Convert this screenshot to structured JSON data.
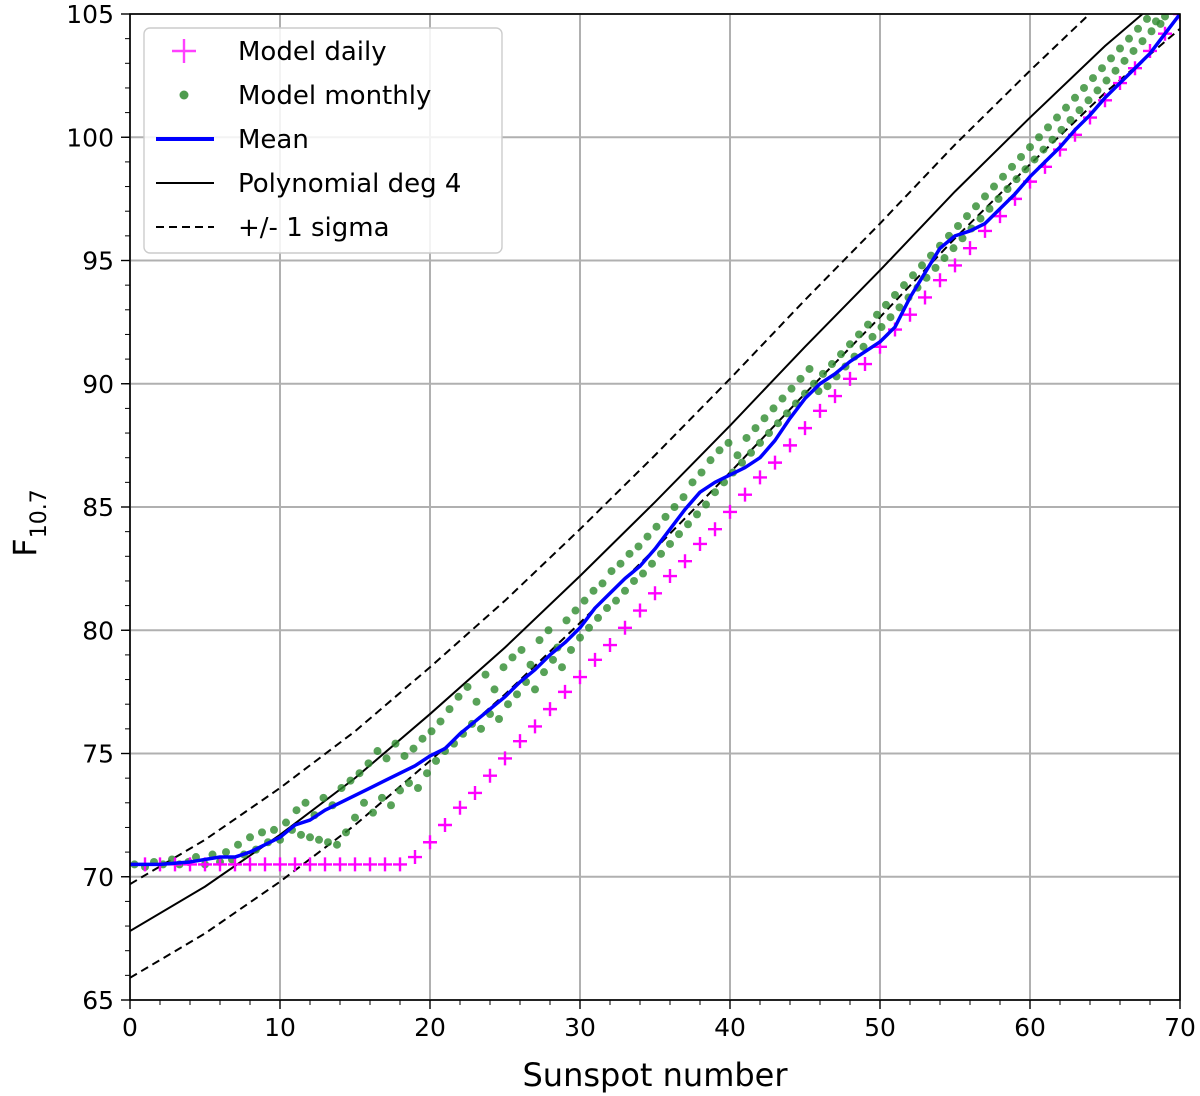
{
  "chart_data": {
    "type": "line",
    "title": "",
    "xlabel": "Sunspot number",
    "ylabel_main": "F",
    "ylabel_sub": "10.7",
    "xlim": [
      0,
      70
    ],
    "ylim": [
      65,
      105
    ],
    "xticks": [
      0,
      10,
      20,
      30,
      40,
      50,
      60,
      70
    ],
    "yticks": [
      65,
      70,
      75,
      80,
      85,
      90,
      95,
      100,
      105
    ],
    "grid": true,
    "legend_position": "upper-left",
    "colors": {
      "daily": "#ff00ff",
      "monthly": "#2e8b2e",
      "mean": "#0000ff",
      "poly": "#000000",
      "sigma": "#000000"
    },
    "legend": {
      "daily": "Model daily",
      "monthly": "Model monthly",
      "mean": "Mean",
      "poly": "Polynomial deg 4",
      "sigma": "+/- 1 sigma"
    },
    "series": {
      "daily": {
        "name": "Model daily",
        "x": [
          1,
          2,
          3,
          4,
          5,
          6,
          7,
          8,
          9,
          10,
          11,
          12,
          13,
          14,
          15,
          16,
          17,
          18,
          19,
          20,
          21,
          22,
          23,
          24,
          25,
          26,
          27,
          28,
          29,
          30,
          31,
          32,
          33,
          34,
          35,
          36,
          37,
          38,
          39,
          40,
          41,
          42,
          43,
          44,
          45,
          46,
          47,
          48,
          49,
          50,
          51,
          52,
          53,
          54,
          55,
          56,
          57,
          58,
          59,
          60,
          61,
          62,
          63,
          64,
          65,
          66,
          67,
          68,
          69,
          70
        ],
        "y": [
          70.5,
          70.5,
          70.5,
          70.5,
          70.5,
          70.5,
          70.5,
          70.5,
          70.5,
          70.5,
          70.5,
          70.5,
          70.5,
          70.5,
          70.5,
          70.5,
          70.5,
          70.5,
          70.8,
          71.4,
          72.1,
          72.8,
          73.4,
          74.1,
          74.8,
          75.5,
          76.1,
          76.8,
          77.5,
          78.1,
          78.8,
          79.4,
          80.1,
          80.8,
          81.5,
          82.2,
          82.8,
          83.5,
          84.1,
          84.8,
          85.5,
          86.2,
          86.8,
          87.5,
          88.2,
          88.9,
          89.5,
          90.2,
          90.8,
          91.5,
          92.2,
          92.8,
          93.5,
          94.2,
          94.8,
          95.5,
          96.2,
          96.8,
          97.5,
          98.2,
          98.8,
          99.5,
          100.1,
          100.8,
          101.5,
          102.2,
          102.8,
          103.5,
          104.2,
          105.0
        ]
      },
      "monthly": {
        "name": "Model monthly",
        "points": [
          [
            0.3,
            70.5
          ],
          [
            1.0,
            70.4
          ],
          [
            1.6,
            70.6
          ],
          [
            2.2,
            70.5
          ],
          [
            2.8,
            70.7
          ],
          [
            3.3,
            70.5
          ],
          [
            3.9,
            70.6
          ],
          [
            4.4,
            70.8
          ],
          [
            5.0,
            70.5
          ],
          [
            5.5,
            70.9
          ],
          [
            6.0,
            70.6
          ],
          [
            6.4,
            71.0
          ],
          [
            6.8,
            70.7
          ],
          [
            7.2,
            71.3
          ],
          [
            7.6,
            70.9
          ],
          [
            8.0,
            71.6
          ],
          [
            8.4,
            71.1
          ],
          [
            8.8,
            71.8
          ],
          [
            9.2,
            71.4
          ],
          [
            9.6,
            71.9
          ],
          [
            10.0,
            71.5
          ],
          [
            10.4,
            72.2
          ],
          [
            10.8,
            71.9
          ],
          [
            11.1,
            72.7
          ],
          [
            11.4,
            71.7
          ],
          [
            11.7,
            73.0
          ],
          [
            12.0,
            71.6
          ],
          [
            12.3,
            72.5
          ],
          [
            12.6,
            71.5
          ],
          [
            12.9,
            73.2
          ],
          [
            13.2,
            71.4
          ],
          [
            13.5,
            72.9
          ],
          [
            13.8,
            71.3
          ],
          [
            14.1,
            73.6
          ],
          [
            14.4,
            71.8
          ],
          [
            14.7,
            73.9
          ],
          [
            15.0,
            72.4
          ],
          [
            15.3,
            74.2
          ],
          [
            15.6,
            73.0
          ],
          [
            15.9,
            74.6
          ],
          [
            16.2,
            72.6
          ],
          [
            16.5,
            75.1
          ],
          [
            16.8,
            73.2
          ],
          [
            17.1,
            74.8
          ],
          [
            17.4,
            72.9
          ],
          [
            17.7,
            75.4
          ],
          [
            18.0,
            73.5
          ],
          [
            18.3,
            74.9
          ],
          [
            18.6,
            73.8
          ],
          [
            18.9,
            75.2
          ],
          [
            19.2,
            73.6
          ],
          [
            19.5,
            75.6
          ],
          [
            19.8,
            74.2
          ],
          [
            20.1,
            75.9
          ],
          [
            20.4,
            74.7
          ],
          [
            20.7,
            76.3
          ],
          [
            21.0,
            75.1
          ],
          [
            21.3,
            76.8
          ],
          [
            21.6,
            75.4
          ],
          [
            21.9,
            77.3
          ],
          [
            22.2,
            75.8
          ],
          [
            22.5,
            77.7
          ],
          [
            22.8,
            76.2
          ],
          [
            23.1,
            77.1
          ],
          [
            23.4,
            76.0
          ],
          [
            23.7,
            78.2
          ],
          [
            24.0,
            76.6
          ],
          [
            24.3,
            77.6
          ],
          [
            24.6,
            76.4
          ],
          [
            24.9,
            78.5
          ],
          [
            25.2,
            77.0
          ],
          [
            25.5,
            78.9
          ],
          [
            25.8,
            77.4
          ],
          [
            26.1,
            79.2
          ],
          [
            26.4,
            77.9
          ],
          [
            26.7,
            78.6
          ],
          [
            27.0,
            77.6
          ],
          [
            27.3,
            79.6
          ],
          [
            27.6,
            78.3
          ],
          [
            27.9,
            80.0
          ],
          [
            28.2,
            78.8
          ],
          [
            28.5,
            79.3
          ],
          [
            28.8,
            78.5
          ],
          [
            29.1,
            80.4
          ],
          [
            29.4,
            79.2
          ],
          [
            29.7,
            80.8
          ],
          [
            30.0,
            79.7
          ],
          [
            30.3,
            81.2
          ],
          [
            30.6,
            80.1
          ],
          [
            30.9,
            81.6
          ],
          [
            31.2,
            80.5
          ],
          [
            31.5,
            81.9
          ],
          [
            31.8,
            80.9
          ],
          [
            32.1,
            82.4
          ],
          [
            32.4,
            81.2
          ],
          [
            32.7,
            82.7
          ],
          [
            33.0,
            81.6
          ],
          [
            33.3,
            83.1
          ],
          [
            33.6,
            82.0
          ],
          [
            33.9,
            83.4
          ],
          [
            34.2,
            82.3
          ],
          [
            34.5,
            83.8
          ],
          [
            34.8,
            82.7
          ],
          [
            35.1,
            84.2
          ],
          [
            35.4,
            83.1
          ],
          [
            35.7,
            84.6
          ],
          [
            36.0,
            83.5
          ],
          [
            36.3,
            85.0
          ],
          [
            36.6,
            83.9
          ],
          [
            36.9,
            85.4
          ],
          [
            37.2,
            84.3
          ],
          [
            37.5,
            86.0
          ],
          [
            37.8,
            84.7
          ],
          [
            38.1,
            86.4
          ],
          [
            38.4,
            85.1
          ],
          [
            38.7,
            86.9
          ],
          [
            39.0,
            85.6
          ],
          [
            39.3,
            87.3
          ],
          [
            39.6,
            86.0
          ],
          [
            39.9,
            87.6
          ],
          [
            40.2,
            86.4
          ],
          [
            40.5,
            87.1
          ],
          [
            40.8,
            86.8
          ],
          [
            41.1,
            87.8
          ],
          [
            41.4,
            87.2
          ],
          [
            41.7,
            88.2
          ],
          [
            42.0,
            87.6
          ],
          [
            42.3,
            88.6
          ],
          [
            42.6,
            88.0
          ],
          [
            42.9,
            89.0
          ],
          [
            43.2,
            88.4
          ],
          [
            43.5,
            89.4
          ],
          [
            43.8,
            88.8
          ],
          [
            44.1,
            89.8
          ],
          [
            44.4,
            89.2
          ],
          [
            44.7,
            90.2
          ],
          [
            45.0,
            89.6
          ],
          [
            45.3,
            90.6
          ],
          [
            45.6,
            90.0
          ],
          [
            45.9,
            89.7
          ],
          [
            46.2,
            90.4
          ],
          [
            46.5,
            89.9
          ],
          [
            46.8,
            90.8
          ],
          [
            47.1,
            90.3
          ],
          [
            47.4,
            91.2
          ],
          [
            47.7,
            90.7
          ],
          [
            48.0,
            91.6
          ],
          [
            48.3,
            91.1
          ],
          [
            48.6,
            92.0
          ],
          [
            48.9,
            91.5
          ],
          [
            49.2,
            92.4
          ],
          [
            49.5,
            91.9
          ],
          [
            49.8,
            92.8
          ],
          [
            50.1,
            92.3
          ],
          [
            50.4,
            93.2
          ],
          [
            50.7,
            92.7
          ],
          [
            51.0,
            93.6
          ],
          [
            51.3,
            93.1
          ],
          [
            51.6,
            94.0
          ],
          [
            51.9,
            93.5
          ],
          [
            52.2,
            94.4
          ],
          [
            52.5,
            93.9
          ],
          [
            52.8,
            94.8
          ],
          [
            53.1,
            94.3
          ],
          [
            53.4,
            95.2
          ],
          [
            53.7,
            94.7
          ],
          [
            54.0,
            95.6
          ],
          [
            54.3,
            95.1
          ],
          [
            54.6,
            96.0
          ],
          [
            54.9,
            95.5
          ],
          [
            55.2,
            96.4
          ],
          [
            55.5,
            95.9
          ],
          [
            55.8,
            96.8
          ],
          [
            56.1,
            96.3
          ],
          [
            56.4,
            97.2
          ],
          [
            56.7,
            96.7
          ],
          [
            57.0,
            97.6
          ],
          [
            57.3,
            97.1
          ],
          [
            57.6,
            98.0
          ],
          [
            57.9,
            97.5
          ],
          [
            58.2,
            98.4
          ],
          [
            58.5,
            97.9
          ],
          [
            58.8,
            98.8
          ],
          [
            59.1,
            98.3
          ],
          [
            59.4,
            99.2
          ],
          [
            59.7,
            98.7
          ],
          [
            60.0,
            99.6
          ],
          [
            60.3,
            99.1
          ],
          [
            60.6,
            100.0
          ],
          [
            60.9,
            99.5
          ],
          [
            61.2,
            100.4
          ],
          [
            61.5,
            99.9
          ],
          [
            61.8,
            100.8
          ],
          [
            62.1,
            100.3
          ],
          [
            62.4,
            101.2
          ],
          [
            62.7,
            100.7
          ],
          [
            63.0,
            101.6
          ],
          [
            63.3,
            101.1
          ],
          [
            63.6,
            102.0
          ],
          [
            63.9,
            101.5
          ],
          [
            64.2,
            102.4
          ],
          [
            64.5,
            101.9
          ],
          [
            64.8,
            102.8
          ],
          [
            65.1,
            102.3
          ],
          [
            65.4,
            103.2
          ],
          [
            65.7,
            102.7
          ],
          [
            66.0,
            103.6
          ],
          [
            66.3,
            103.1
          ],
          [
            66.6,
            104.0
          ],
          [
            66.9,
            103.5
          ],
          [
            67.2,
            104.4
          ],
          [
            67.5,
            103.9
          ],
          [
            67.8,
            104.8
          ],
          [
            68.1,
            104.3
          ],
          [
            68.4,
            104.7
          ],
          [
            68.7,
            104.6
          ],
          [
            69.0,
            104.9
          ]
        ]
      },
      "mean": {
        "name": "Mean",
        "x": [
          0,
          2,
          4,
          6,
          7,
          8,
          9,
          10,
          11,
          12,
          13,
          14,
          15,
          16,
          17,
          18,
          19,
          20,
          21,
          22,
          23,
          24,
          25,
          26,
          27,
          28,
          29,
          30,
          31,
          32,
          33,
          34,
          35,
          36,
          37,
          38,
          39,
          40,
          41,
          42,
          43,
          44,
          45,
          46,
          47,
          48,
          49,
          50,
          51,
          52,
          53,
          54,
          55,
          56,
          57,
          58,
          59,
          60,
          61,
          62,
          63,
          64,
          65,
          66,
          67,
          68,
          69,
          70
        ],
        "y": [
          70.5,
          70.5,
          70.6,
          70.8,
          70.8,
          71.0,
          71.3,
          71.6,
          72.1,
          72.3,
          72.7,
          73.0,
          73.3,
          73.6,
          73.9,
          74.2,
          74.5,
          74.9,
          75.2,
          75.8,
          76.3,
          76.8,
          77.3,
          77.9,
          78.4,
          79.0,
          79.5,
          80.1,
          80.9,
          81.5,
          82.1,
          82.6,
          83.3,
          84.1,
          84.9,
          85.6,
          86.0,
          86.3,
          86.6,
          87.0,
          87.7,
          88.6,
          89.4,
          90.0,
          90.4,
          90.9,
          91.3,
          91.7,
          92.3,
          93.5,
          94.5,
          95.5,
          96.0,
          96.2,
          96.5,
          97.1,
          97.7,
          98.4,
          99.0,
          99.6,
          100.3,
          100.9,
          101.6,
          102.2,
          102.8,
          103.4,
          104.2,
          105.0
        ]
      },
      "poly": {
        "name": "Polynomial deg 4",
        "x": [
          0,
          5,
          10,
          15,
          20,
          25,
          30,
          35,
          40,
          45,
          50,
          55,
          60,
          65,
          70
        ],
        "y": [
          67.8,
          69.6,
          71.7,
          74.0,
          76.6,
          79.3,
          82.2,
          85.2,
          88.3,
          91.5,
          94.6,
          97.8,
          100.8,
          103.7,
          106.3
        ]
      },
      "sigma": {
        "name": "+/- 1 sigma",
        "x": [
          0,
          5,
          10,
          15,
          20,
          25,
          30,
          35,
          40,
          45,
          50,
          55,
          60,
          65,
          70
        ],
        "upper": [
          69.7,
          71.5,
          73.6,
          75.9,
          78.5,
          81.2,
          84.1,
          87.1,
          90.2,
          93.4,
          96.5,
          99.7,
          102.7,
          105.6,
          108.2
        ],
        "lower": [
          65.9,
          67.7,
          69.8,
          72.1,
          74.7,
          77.4,
          80.3,
          83.3,
          86.4,
          89.6,
          92.7,
          95.9,
          98.9,
          101.8,
          104.4
        ]
      }
    }
  }
}
